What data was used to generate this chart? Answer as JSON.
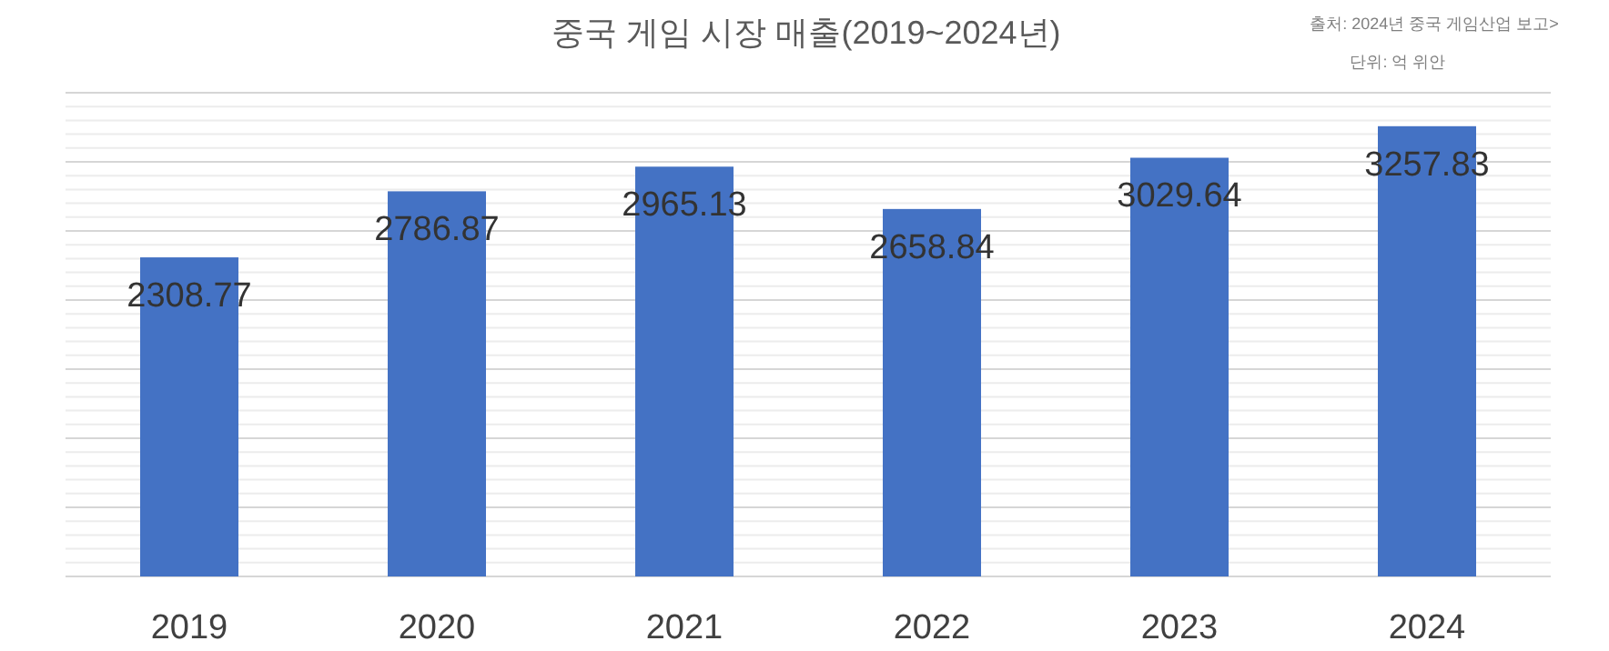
{
  "chart_data": {
    "type": "bar",
    "title": "중국 게임 시장 매출(2019~2024년)",
    "annotations": [
      "출처: 2024년 중국 게임산업 보고>",
      "단위: 억 위안"
    ],
    "categories": [
      "2019",
      "2020",
      "2021",
      "2022",
      "2023",
      "2024"
    ],
    "values": [
      2308.77,
      2786.87,
      2965.13,
      2658.84,
      3029.64,
      3257.83
    ],
    "color": "#4472c4",
    "data_labels": true,
    "grid": "y",
    "tick_labels": "x",
    "ylim": [
      0,
      3500
    ],
    "yticks": [
      {
        "value": 0,
        "label": null
      },
      {
        "value": 500,
        "label": null
      },
      {
        "value": 1000,
        "label": null
      },
      {
        "value": 1500,
        "label": null
      },
      {
        "value": 2000,
        "label": null
      },
      {
        "value": 2500,
        "label": null
      },
      {
        "value": 3000,
        "label": null
      },
      {
        "value": 3500,
        "label": null
      }
    ]
  }
}
